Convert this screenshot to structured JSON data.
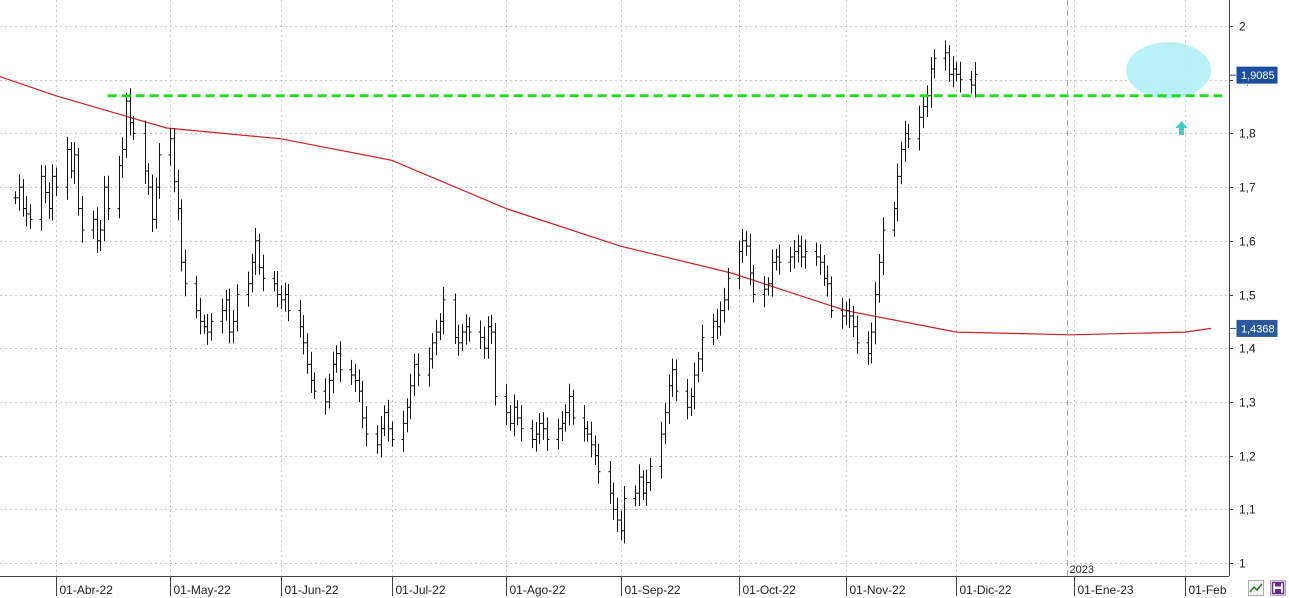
{
  "chart_data": {
    "type": "ohlc",
    "title": "",
    "xlabel": "",
    "ylabel": "",
    "ylim": [
      0.97,
      2.07
    ],
    "grid": true,
    "legend": "none",
    "y_ticks": [
      "1",
      "1,1",
      "1,2",
      "1,3",
      "1,4",
      "1,5",
      "1,6",
      "1,7",
      "1,8",
      "1,9",
      "2"
    ],
    "x_ticks": [
      {
        "label": "01-Abr-22",
        "date": "2022-04-01"
      },
      {
        "label": "01-May-22",
        "date": "2022-05-02"
      },
      {
        "label": "01-Jun-22",
        "date": "2022-06-01"
      },
      {
        "label": "01-Jul-22",
        "date": "2022-07-01"
      },
      {
        "label": "01-Ago-22",
        "date": "2022-08-01"
      },
      {
        "label": "01-Sep-22",
        "date": "2022-09-01"
      },
      {
        "label": "01-Oct-22",
        "date": "2022-10-03"
      },
      {
        "label": "01-Nov-22",
        "date": "2022-11-01"
      },
      {
        "label": "01-Dic-22",
        "date": "2022-12-01"
      },
      {
        "label": "01-Ene-23",
        "date": "2023-01-02"
      },
      {
        "label": "01-Feb",
        "date": "2023-02-01"
      }
    ],
    "year_marker": {
      "label": "2023",
      "date": "2022-12-31"
    },
    "price_closes": [
      1.68,
      1.7,
      1.66,
      1.65,
      1.64,
      1.72,
      1.69,
      1.66,
      1.72,
      1.7,
      1.77,
      1.73,
      1.76,
      1.66,
      1.62,
      1.64,
      1.6,
      1.62,
      1.7,
      1.66,
      1.74,
      1.77,
      1.86,
      1.82,
      1.8,
      1.73,
      1.7,
      1.64,
      1.7,
      1.76,
      1.79,
      1.71,
      1.66,
      1.56,
      1.52,
      1.47,
      1.45,
      1.44,
      1.43,
      1.45,
      1.47,
      1.49,
      1.43,
      1.45,
      1.5,
      1.52,
      1.56,
      1.6,
      1.55,
      1.53,
      1.52,
      1.5,
      1.49,
      1.5,
      1.47,
      1.44,
      1.41,
      1.37,
      1.34,
      1.32,
      1.3,
      1.34,
      1.37,
      1.39,
      1.36,
      1.35,
      1.34,
      1.32,
      1.27,
      1.24,
      1.22,
      1.25,
      1.28,
      1.25,
      1.23,
      1.26,
      1.29,
      1.33,
      1.37,
      1.35,
      1.38,
      1.41,
      1.43,
      1.45,
      1.49,
      1.42,
      1.41,
      1.43,
      1.44,
      1.43,
      1.42,
      1.4,
      1.44,
      1.43,
      1.31,
      1.28,
      1.26,
      1.29,
      1.27,
      1.25,
      1.23,
      1.24,
      1.26,
      1.25,
      1.23,
      1.25,
      1.26,
      1.28,
      1.31,
      1.27,
      1.25,
      1.24,
      1.22,
      1.2,
      1.17,
      1.13,
      1.1,
      1.08,
      1.06,
      1.12,
      1.13,
      1.16,
      1.13,
      1.15,
      1.18,
      1.24,
      1.28,
      1.33,
      1.36,
      1.32,
      1.29,
      1.31,
      1.35,
      1.38,
      1.42,
      1.45,
      1.44,
      1.47,
      1.49,
      1.53,
      1.58,
      1.6,
      1.59,
      1.54,
      1.5,
      1.51,
      1.52,
      1.56,
      1.57,
      1.56,
      1.57,
      1.58,
      1.59,
      1.57,
      1.58,
      1.57,
      1.56,
      1.53,
      1.52,
      1.47,
      1.46,
      1.47,
      1.46,
      1.44,
      1.41,
      1.39,
      1.43,
      1.5,
      1.56,
      1.62,
      1.66,
      1.72,
      1.77,
      1.8,
      1.79,
      1.83,
      1.85,
      1.87,
      1.92,
      1.94,
      1.95,
      1.91,
      1.92,
      1.91,
      1.9,
      1.89,
      1.91
    ]
  },
  "moving_average": {
    "label": "1,4368",
    "color": "#cc2222",
    "points": [
      [
        "2022-03-15",
        1.91
      ],
      [
        "2022-04-01",
        1.87
      ],
      [
        "2022-05-01",
        1.81
      ],
      [
        "2022-06-01",
        1.79
      ],
      [
        "2022-07-01",
        1.75
      ],
      [
        "2022-08-01",
        1.66
      ],
      [
        "2022-09-01",
        1.59
      ],
      [
        "2022-10-01",
        1.54
      ],
      [
        "2022-11-01",
        1.47
      ],
      [
        "2022-12-01",
        1.43
      ],
      [
        "2023-01-01",
        1.425
      ],
      [
        "2023-02-01",
        1.43
      ],
      [
        "2023-02-08",
        1.4368
      ]
    ]
  },
  "last_price": {
    "label": "1,9085",
    "color": "#1a4fa0"
  },
  "resistance_line": {
    "value": 1.87,
    "date_start": "2022-04-15",
    "color": "#22dd22"
  },
  "highlight_ellipse": {
    "date_from": "2023-01-16",
    "date_to": "2023-02-08",
    "y_from": 1.865,
    "y_to": 1.97,
    "color": "#b3eef7"
  },
  "arrow_annotation": {
    "date": "2023-01-31",
    "value": 1.81,
    "color": "#3ecfc9",
    "icon": "up-arrow-icon"
  },
  "toolbar": {
    "chart_type_icon": "line-chart-icon",
    "save_icon": "save-icon"
  }
}
